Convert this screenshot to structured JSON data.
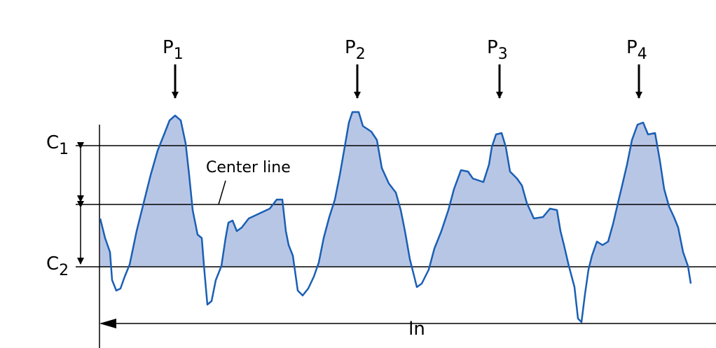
{
  "peaks": [
    {
      "base": "P",
      "sub": "1"
    },
    {
      "base": "P",
      "sub": "2"
    },
    {
      "base": "P",
      "sub": "3"
    },
    {
      "base": "P",
      "sub": "4"
    }
  ],
  "levels": [
    {
      "base": "C",
      "sub": "1"
    },
    {
      "base": "C",
      "sub": "2"
    }
  ],
  "center_line": "Center line",
  "length": "ln"
}
